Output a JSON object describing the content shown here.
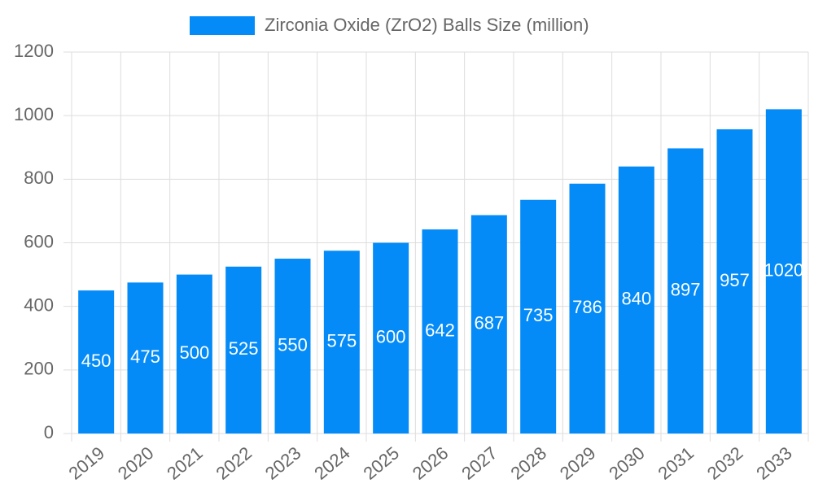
{
  "chart_data": {
    "type": "bar",
    "categories": [
      "2019",
      "2020",
      "2021",
      "2022",
      "2023",
      "2024",
      "2025",
      "2026",
      "2027",
      "2028",
      "2029",
      "2030",
      "2031",
      "2032",
      "2033"
    ],
    "series": [
      {
        "name": "Zirconia Oxide (ZrO2) Balls Size (million)",
        "color": "#048bf8",
        "values": [
          450,
          475,
          500,
          525,
          550,
          575,
          600,
          642,
          687,
          735,
          786,
          840,
          897,
          957,
          1020
        ]
      }
    ],
    "ylim": [
      0,
      1200
    ],
    "yticks": [
      0,
      200,
      400,
      600,
      800,
      1000,
      1200
    ],
    "grid": true,
    "legend": "top"
  }
}
